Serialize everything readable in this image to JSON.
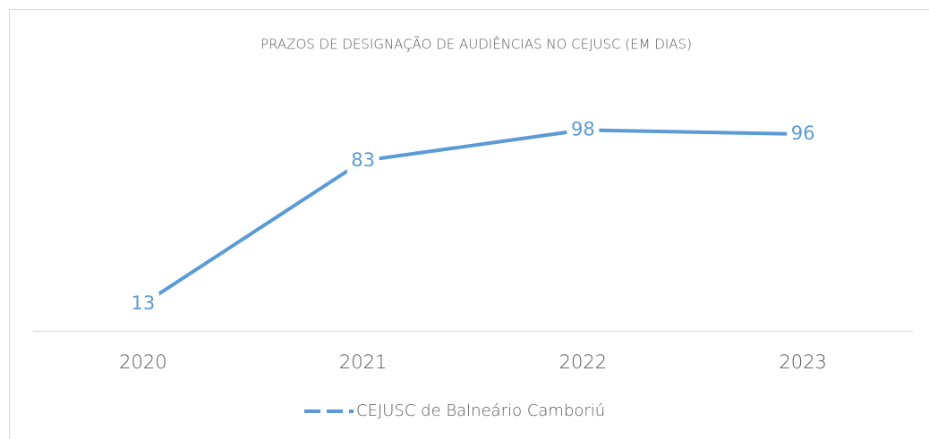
{
  "chart_data": {
    "type": "line",
    "title": "PRAZOS DE DESIGNAÇÃO DE AUDIÊNCIAS NO CEJUSC (EM DIAS)",
    "categories": [
      "2020",
      "2021",
      "2022",
      "2023"
    ],
    "series": [
      {
        "name": "CEJUSC de Balneário Camboriú",
        "color": "#5b9bd5",
        "values": [
          13,
          83,
          98,
          96
        ]
      }
    ],
    "ylim": [
      0,
      120
    ],
    "legend": "bottom"
  }
}
